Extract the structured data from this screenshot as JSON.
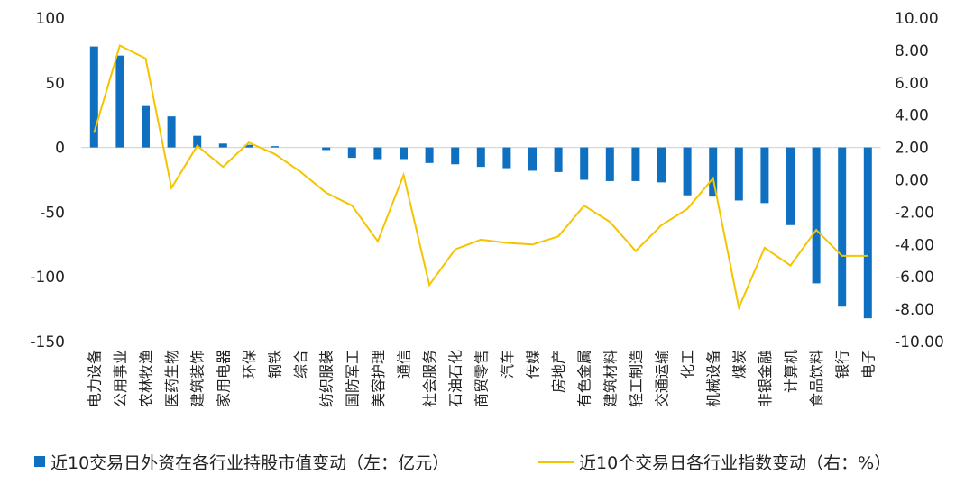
{
  "chart_data": {
    "type": "bar+line",
    "categories": [
      "电力设备",
      "公用事业",
      "农林牧渔",
      "医药生物",
      "建筑装饰",
      "家用电器",
      "环保",
      "钢铁",
      "综合",
      "纺织服装",
      "国防军工",
      "美容护理",
      "通信",
      "社会服务",
      "石油石化",
      "商贸零售",
      "汽车",
      "传媒",
      "房地产",
      "有色金属",
      "建筑材料",
      "轻工制造",
      "交通运输",
      "化工",
      "机械设备",
      "煤炭",
      "非银金融",
      "计算机",
      "食品饮料",
      "银行",
      "电子"
    ],
    "series": [
      {
        "name": "近10交易日外资在各行业持股市值变动（左：亿元）",
        "type": "bar",
        "axis": "left",
        "color": "#0f6fc0",
        "values": [
          78,
          71,
          32,
          24,
          9,
          3,
          2,
          1,
          0,
          -2,
          -8,
          -9,
          -9,
          -12,
          -13,
          -15,
          -16,
          -18,
          -19,
          -25,
          -26,
          -26,
          -27,
          -37,
          -38,
          -41,
          -43,
          -60,
          -105,
          -123,
          -132
        ]
      },
      {
        "name": "近10个交易日各行业指数变动（右：%）",
        "type": "line",
        "axis": "right",
        "color": "#f5c400",
        "values": [
          2.9,
          8.3,
          7.5,
          -0.5,
          2.1,
          0.8,
          2.3,
          1.6,
          0.5,
          -0.8,
          -1.6,
          -3.8,
          0.3,
          -6.5,
          -4.3,
          -3.7,
          -3.9,
          -4.0,
          -3.5,
          -1.6,
          -2.6,
          -4.4,
          -2.8,
          -1.8,
          0.1,
          -7.9,
          -4.2,
          -5.3,
          -3.1,
          -4.7,
          -4.7
        ]
      }
    ],
    "y_left": {
      "min": -150,
      "max": 100,
      "ticks": [
        "100",
        "50",
        "0",
        "-50",
        "-100",
        "-150"
      ]
    },
    "y_right": {
      "min": -10,
      "max": 10,
      "ticks": [
        "10.00",
        "8.00",
        "6.00",
        "4.00",
        "2.00",
        "0.00",
        "-2.00",
        "-4.00",
        "-6.00",
        "-8.00",
        "-10.00"
      ]
    },
    "grid": false,
    "legend_position": "bottom"
  }
}
